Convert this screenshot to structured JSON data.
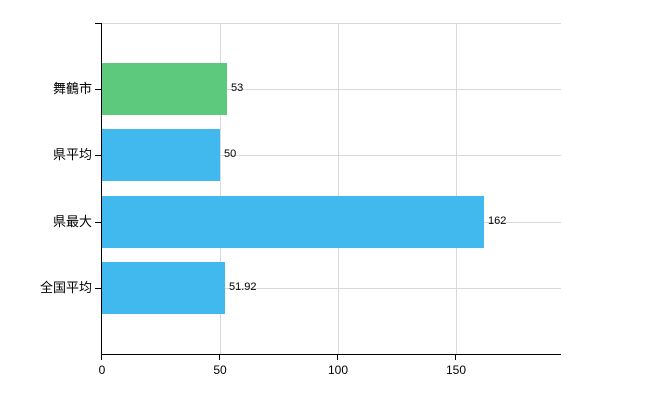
{
  "chart_data": {
    "type": "bar",
    "orientation": "horizontal",
    "title": "",
    "xlabel": "",
    "ylabel": "",
    "categories": [
      "舞鶴市",
      "県平均",
      "県最大",
      "全国平均"
    ],
    "values": [
      53,
      50,
      162,
      51.92
    ],
    "value_labels": [
      "53",
      "50",
      "162",
      "51.92"
    ],
    "bar_colors": [
      "#5dc97c",
      "#41b8ee",
      "#41b8ee",
      "#41b8ee"
    ],
    "x_ticks": [
      0,
      50,
      100,
      150
    ],
    "x_tick_labels": [
      "0",
      "50",
      "100",
      "150"
    ],
    "xlim": [
      0,
      194.5
    ],
    "grid": true,
    "legend": "none",
    "colors": {
      "axis": "#000000",
      "gridline": "#d9d9d9",
      "text": "#000000",
      "background": "#ffffff"
    }
  }
}
